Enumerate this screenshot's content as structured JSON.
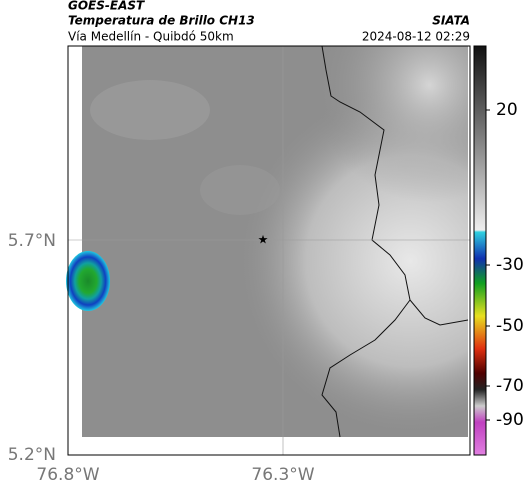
{
  "header": {
    "product": "GOES-EAST",
    "title": "Temperatura de Brillo CH13",
    "subtitle": "Vía Medellín - Quibdó 50km",
    "source": "SIATA",
    "timestamp": "2024-08-12 02:29"
  },
  "map": {
    "lat_labels": [
      "5.7°N",
      "5.2°N"
    ],
    "lon_labels": [
      "76.8°W",
      "76.3°W"
    ],
    "colorbar_labels": [
      "20",
      "-30",
      "-50",
      "-70",
      "-90"
    ]
  }
}
